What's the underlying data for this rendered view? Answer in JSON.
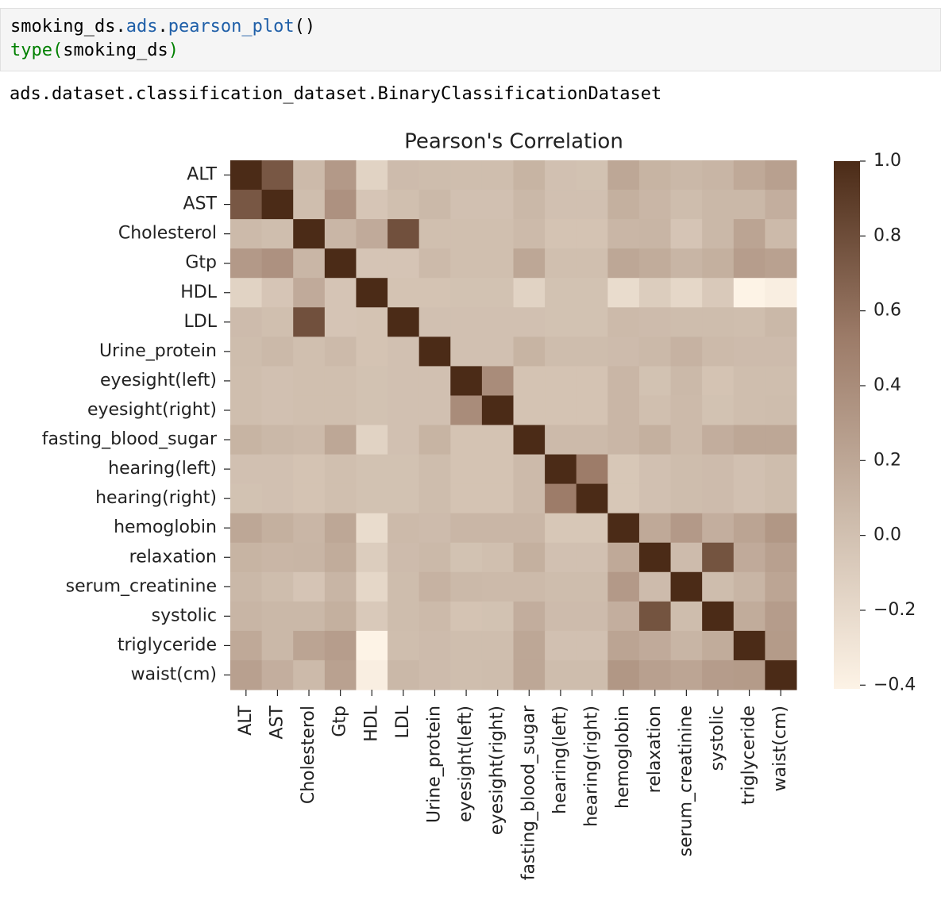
{
  "code": {
    "lines": [
      [
        "smoking_ds.",
        "ads",
        ".",
        "pearson_plot",
        "()"
      ],
      [
        "type",
        "(",
        "smoking_ds",
        ")"
      ]
    ]
  },
  "output": "ads.dataset.classification_dataset.BinaryClassificationDataset",
  "chart_data": {
    "type": "heatmap",
    "title": "Pearson's Correlation",
    "categories": [
      "ALT",
      "AST",
      "Cholesterol",
      "Gtp",
      "HDL",
      "LDL",
      "Urine_protein",
      "eyesight(left)",
      "eyesight(right)",
      "fasting_blood_sugar",
      "hearing(left)",
      "hearing(right)",
      "hemoglobin",
      "relaxation",
      "serum_creatinine",
      "systolic",
      "triglyceride",
      "waist(cm)"
    ],
    "z": [
      [
        1,
        0.74,
        0.05,
        0.3,
        -0.15,
        0.04,
        0.03,
        0.02,
        0.02,
        0.1,
        0,
        -0.01,
        0.2,
        0.1,
        0.07,
        0.09,
        0.18,
        0.25
      ],
      [
        0.74,
        1,
        0.02,
        0.36,
        -0.04,
        0.01,
        0.06,
        0,
        0,
        0.07,
        0,
        0,
        0.13,
        0.08,
        0.03,
        0.07,
        0.07,
        0.14
      ],
      [
        0.05,
        0.02,
        1,
        0.08,
        0.17,
        0.78,
        0.01,
        0.01,
        0.01,
        0.05,
        -0.02,
        -0.02,
        0.08,
        0.09,
        -0.03,
        0.07,
        0.22,
        0.05
      ],
      [
        0.3,
        0.36,
        0.08,
        1,
        -0.03,
        -0.03,
        0.05,
        0.01,
        0.01,
        0.2,
        0.01,
        0.01,
        0.2,
        0.16,
        0.09,
        0.13,
        0.27,
        0.24
      ],
      [
        -0.15,
        -0.04,
        0.17,
        -0.03,
        1,
        -0.02,
        -0.02,
        -0.01,
        -0.01,
        -0.15,
        -0.01,
        -0.01,
        -0.22,
        -0.1,
        -0.18,
        -0.07,
        -0.41,
        -0.37
      ],
      [
        0.04,
        0.01,
        0.78,
        -0.03,
        -0.02,
        1,
        0,
        0,
        0,
        0,
        -0.01,
        -0.01,
        0.05,
        0.04,
        0.03,
        0.03,
        0.02,
        0.07
      ],
      [
        0.03,
        0.06,
        0.01,
        0.05,
        -0.02,
        0,
        1,
        0,
        0,
        0.1,
        0.03,
        0.03,
        0.04,
        0.06,
        0.11,
        0.05,
        0.04,
        0.04
      ],
      [
        0.02,
        0,
        0.01,
        0.01,
        -0.01,
        0,
        0,
        1,
        0.4,
        -0.02,
        -0.02,
        -0.02,
        0.08,
        -0.01,
        0.06,
        -0.02,
        0.02,
        0.02
      ],
      [
        0.02,
        0,
        0.01,
        0.01,
        -0.01,
        0,
        0,
        0.4,
        1,
        -0.02,
        -0.02,
        -0.02,
        0.08,
        0.01,
        0.05,
        -0.01,
        0.02,
        0.03
      ],
      [
        0.1,
        0.07,
        0.05,
        0.2,
        -0.15,
        0,
        0.1,
        -0.02,
        -0.02,
        1,
        0.05,
        0.05,
        0.08,
        0.13,
        0.05,
        0.15,
        0.2,
        0.2
      ],
      [
        0,
        0,
        -0.02,
        0.01,
        -0.01,
        -0.01,
        0.03,
        -0.02,
        -0.02,
        0.05,
        1,
        0.52,
        -0.05,
        0,
        0.03,
        0.04,
        0,
        0.03
      ],
      [
        -0.01,
        0,
        -0.02,
        0.01,
        -0.01,
        -0.01,
        0.03,
        -0.02,
        -0.02,
        0.05,
        0.52,
        1,
        -0.05,
        0,
        0.03,
        0.04,
        0,
        0.03
      ],
      [
        0.2,
        0.13,
        0.08,
        0.2,
        -0.22,
        0.05,
        0.04,
        0.08,
        0.08,
        0.08,
        -0.05,
        -0.05,
        1,
        0.18,
        0.3,
        0.14,
        0.22,
        0.32
      ],
      [
        0.1,
        0.08,
        0.09,
        0.16,
        -0.1,
        0.04,
        0.06,
        -0.01,
        0.01,
        0.13,
        0,
        0,
        0.18,
        1,
        0.04,
        0.76,
        0.17,
        0.25
      ],
      [
        0.07,
        0.03,
        -0.03,
        0.09,
        -0.18,
        0.03,
        0.11,
        0.06,
        0.05,
        0.05,
        0.03,
        0.03,
        0.3,
        0.04,
        1,
        0.03,
        0.09,
        0.21
      ],
      [
        0.09,
        0.07,
        0.07,
        0.13,
        -0.07,
        0.03,
        0.05,
        -0.02,
        -0.01,
        0.15,
        0.04,
        0.04,
        0.14,
        0.76,
        0.03,
        1,
        0.16,
        0.28
      ],
      [
        0.18,
        0.07,
        0.22,
        0.27,
        -0.41,
        0.02,
        0.04,
        0.02,
        0.02,
        0.2,
        0,
        0,
        0.22,
        0.17,
        0.09,
        0.16,
        1,
        0.29
      ],
      [
        0.25,
        0.14,
        0.05,
        0.24,
        -0.37,
        0.07,
        0.04,
        0.02,
        0.03,
        0.2,
        0.03,
        0.03,
        0.32,
        0.25,
        0.21,
        0.28,
        0.29,
        1
      ]
    ],
    "zlim": [
      -0.41,
      1.0
    ],
    "zticks": [
      {
        "value": 1.0,
        "label": "1.0"
      },
      0.8,
      0.6,
      0.4,
      0.2,
      {
        "value": 0,
        "label": "0.0"
      },
      {
        "value": -0.2,
        "label": "−0.2"
      },
      {
        "value": -0.4,
        "label": "−0.4"
      }
    ],
    "colormap": [
      "#fdf3e6",
      "#cbb9a9",
      "#9c7b68",
      "#4b2b17"
    ]
  }
}
